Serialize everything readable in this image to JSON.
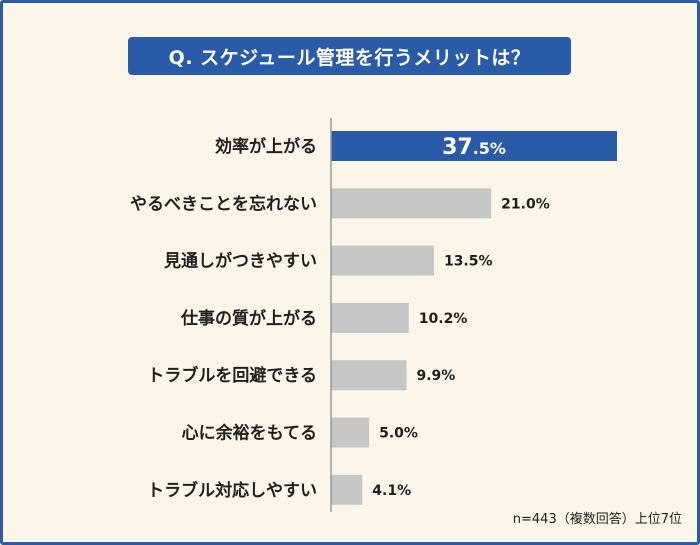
{
  "title": "Q. スケジュール管理を行うメリットは？",
  "footnote": "n=443（複数回答）上位7位",
  "colors": {
    "highlight": "#2a5ba8",
    "bar": "#c6c6c6",
    "axis": "#9a9a9a",
    "background": "#fbf6e9",
    "border": "#2b5aa8"
  },
  "chart_data": {
    "type": "bar",
    "orientation": "horizontal",
    "title": "Q. スケジュール管理を行うメリットは？",
    "categories": [
      "効率が上がる",
      "やるべきことを忘れない",
      "見通しがつきやすい",
      "仕事の質が上がる",
      "トラブルを回避できる",
      "心に余裕をもてる",
      "トラブル対応しやすい"
    ],
    "values": [
      37.5,
      21.0,
      13.5,
      10.2,
      9.9,
      5.0,
      4.1
    ],
    "value_labels": [
      "37.5%",
      "21.0%",
      "13.5%",
      "10.2%",
      "9.9%",
      "5.0%",
      "4.1%"
    ],
    "unit": "%",
    "xlim": [
      0,
      37.5
    ],
    "highlight_index": 0,
    "xlabel": "",
    "ylabel": "",
    "grid": false
  }
}
